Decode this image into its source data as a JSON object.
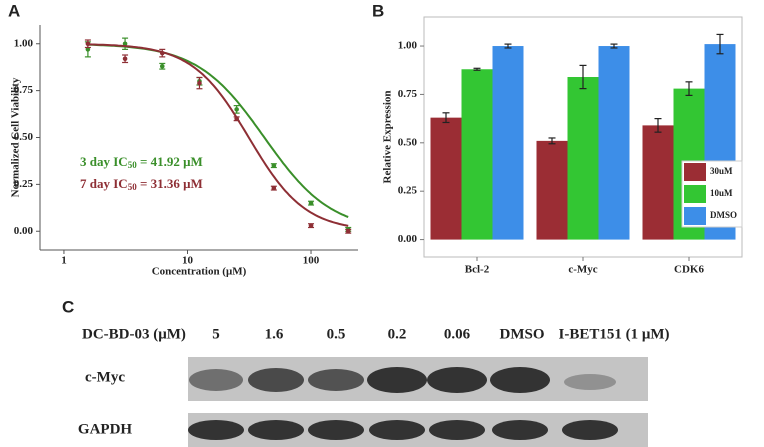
{
  "chart_data": [
    {
      "panel": "A",
      "type": "scatter",
      "log_x": true,
      "x_label": "Concentration (μM)",
      "y_label": "Normalized Cell Viability",
      "x": [
        1.5625,
        3.125,
        6.25,
        12.5,
        25,
        50,
        100,
        200
      ],
      "xlim": [
        0.64,
        240
      ],
      "xticks": [
        1,
        10,
        100
      ],
      "ylim": [
        -0.1,
        1.1
      ],
      "yticks": [
        {
          "value": 0,
          "label": "0.00"
        },
        {
          "value": 0.25,
          "label": "0.25"
        },
        {
          "value": 0.5,
          "label": "0.50"
        },
        {
          "value": 0.75,
          "label": "0.75"
        },
        {
          "value": 1,
          "label": "1.00"
        }
      ],
      "series": [
        {
          "color": "#3a8f2a",
          "values": [
            0.97,
            1.0,
            0.88,
            0.8,
            0.65,
            0.35,
            0.15,
            0.01
          ],
          "errors": [
            0.04,
            0.03,
            0.015,
            0.02,
            0.02,
            0.01,
            0.01,
            0.01
          ],
          "ic50": 41.92,
          "hill": 1.6
        },
        {
          "color": "#8e2f35",
          "values": [
            1.0,
            0.92,
            0.95,
            0.79,
            0.6,
            0.23,
            0.03,
            0.0
          ],
          "errors": [
            0.02,
            0.02,
            0.02,
            0.03,
            0.01,
            0.01,
            0.01,
            0.01
          ],
          "ic50": 31.36,
          "hill": 1.9
        }
      ],
      "annotations": [
        {
          "text": "3 day IC",
          "sub": "50",
          "rest": " = 41.92 μM"
        },
        {
          "text": "7 day IC",
          "sub": "50",
          "rest": " = 31.36 μM"
        }
      ]
    },
    {
      "panel": "B",
      "type": "bar",
      "y_label": "Relative Expression",
      "categories": [
        "Bcl-2",
        "c-Myc",
        "CDK6"
      ],
      "ylim": [
        -0.09,
        1.15
      ],
      "yticks": [
        {
          "value": 0,
          "label": "0.00"
        },
        {
          "value": 0.25,
          "label": "0.25"
        },
        {
          "value": 0.5,
          "label": "0.50"
        },
        {
          "value": 0.75,
          "label": "0.75"
        },
        {
          "value": 1,
          "label": "1.00"
        }
      ],
      "legend": "bottom-right",
      "series": [
        {
          "name": "30uM",
          "color": "#9b2d34",
          "values": [
            0.63,
            0.51,
            0.59
          ],
          "errors": [
            0.025,
            0.015,
            0.035
          ]
        },
        {
          "name": "10uM",
          "color": "#33c633",
          "values": [
            0.88,
            0.84,
            0.78
          ],
          "errors": [
            0.005,
            0.06,
            0.035
          ]
        },
        {
          "name": "DMSO",
          "color": "#3d8ee8",
          "values": [
            1.0,
            1.0,
            1.01
          ],
          "errors": [
            0.01,
            0.01,
            0.05
          ]
        }
      ]
    }
  ],
  "blot": {
    "panel": "C",
    "treatment_label": "DC-BD-03 (μM)",
    "lanes": [
      "5",
      "1.6",
      "0.5",
      "0.2",
      "0.06",
      "DMSO",
      "I-BET151 (1 μM)"
    ],
    "rows": [
      "c-Myc",
      "GAPDH"
    ]
  }
}
